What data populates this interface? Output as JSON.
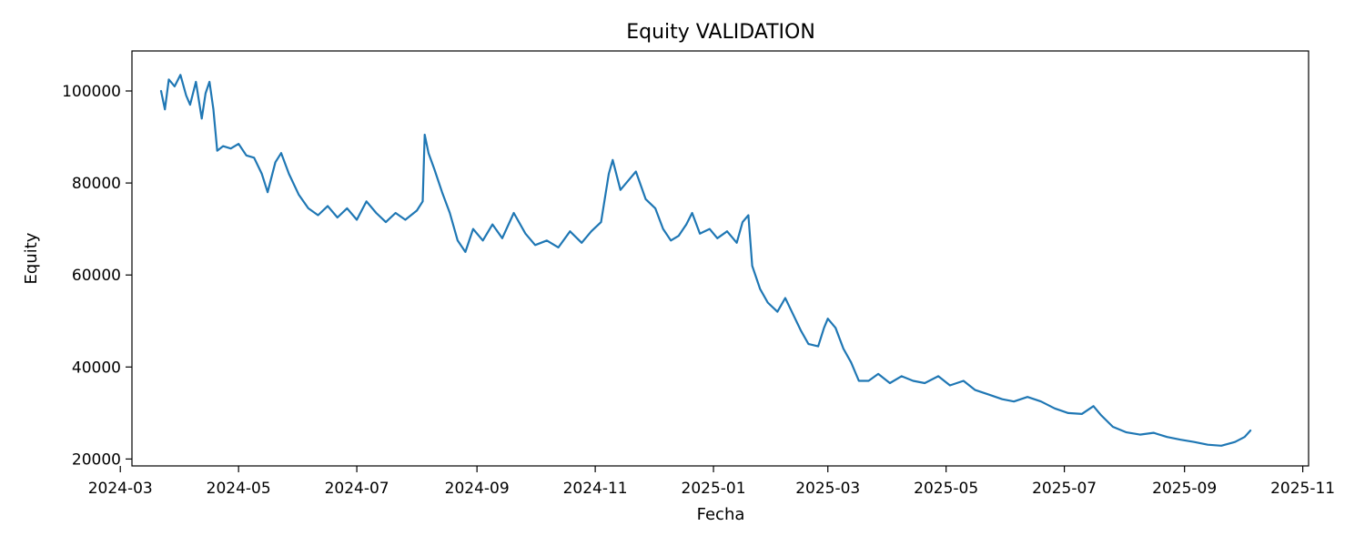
{
  "chart_data": {
    "type": "line",
    "title": "Equity VALIDATION",
    "xlabel": "Fecha",
    "ylabel": "Equity",
    "x_axis_type": "date",
    "xlim": [
      "2024-03-07",
      "2025-11-04"
    ],
    "ylim": [
      18500,
      108700
    ],
    "grid": false,
    "legend": "none",
    "x_ticks": [
      "2024-03-01",
      "2024-05-01",
      "2024-07-01",
      "2024-09-01",
      "2024-11-01",
      "2025-01-01",
      "2025-03-01",
      "2025-05-01",
      "2025-07-01",
      "2025-09-01",
      "2025-11-01"
    ],
    "x_tick_labels": [
      "2024-03",
      "2024-05",
      "2024-07",
      "2024-09",
      "2024-11",
      "2025-01",
      "2025-03",
      "2025-05",
      "2025-07",
      "2025-09",
      "2025-11"
    ],
    "y_ticks": [
      20000,
      40000,
      60000,
      80000,
      100000
    ],
    "y_tick_labels": [
      "20000",
      "40000",
      "60000",
      "80000",
      "100000"
    ],
    "series": [
      {
        "color": "#1f77b4",
        "points": [
          [
            "2024-03-22",
            100000
          ],
          [
            "2024-03-24",
            96000
          ],
          [
            "2024-03-26",
            102500
          ],
          [
            "2024-03-29",
            101000
          ],
          [
            "2024-04-01",
            103500
          ],
          [
            "2024-04-04",
            99000
          ],
          [
            "2024-04-06",
            97000
          ],
          [
            "2024-04-09",
            102000
          ],
          [
            "2024-04-12",
            94000
          ],
          [
            "2024-04-14",
            99500
          ],
          [
            "2024-04-16",
            102000
          ],
          [
            "2024-04-18",
            96000
          ],
          [
            "2024-04-20",
            87000
          ],
          [
            "2024-04-23",
            88000
          ],
          [
            "2024-04-27",
            87500
          ],
          [
            "2024-05-01",
            88500
          ],
          [
            "2024-05-05",
            86000
          ],
          [
            "2024-05-09",
            85500
          ],
          [
            "2024-05-13",
            82000
          ],
          [
            "2024-05-16",
            78000
          ],
          [
            "2024-05-20",
            84500
          ],
          [
            "2024-05-23",
            86500
          ],
          [
            "2024-05-27",
            82000
          ],
          [
            "2024-06-01",
            77500
          ],
          [
            "2024-06-06",
            74500
          ],
          [
            "2024-06-11",
            73000
          ],
          [
            "2024-06-16",
            75000
          ],
          [
            "2024-06-21",
            72500
          ],
          [
            "2024-06-26",
            74500
          ],
          [
            "2024-07-01",
            72000
          ],
          [
            "2024-07-06",
            76000
          ],
          [
            "2024-07-11",
            73500
          ],
          [
            "2024-07-16",
            71500
          ],
          [
            "2024-07-21",
            73500
          ],
          [
            "2024-07-26",
            72000
          ],
          [
            "2024-08-01",
            74000
          ],
          [
            "2024-08-04",
            76000
          ],
          [
            "2024-08-05",
            90500
          ],
          [
            "2024-08-07",
            86500
          ],
          [
            "2024-08-10",
            83000
          ],
          [
            "2024-08-14",
            78000
          ],
          [
            "2024-08-18",
            73500
          ],
          [
            "2024-08-22",
            67500
          ],
          [
            "2024-08-26",
            65000
          ],
          [
            "2024-08-30",
            70000
          ],
          [
            "2024-09-04",
            67500
          ],
          [
            "2024-09-09",
            71000
          ],
          [
            "2024-09-14",
            68000
          ],
          [
            "2024-09-20",
            73500
          ],
          [
            "2024-09-26",
            69000
          ],
          [
            "2024-10-01",
            66500
          ],
          [
            "2024-10-07",
            67500
          ],
          [
            "2024-10-13",
            66000
          ],
          [
            "2024-10-19",
            69500
          ],
          [
            "2024-10-25",
            67000
          ],
          [
            "2024-10-30",
            69500
          ],
          [
            "2024-11-04",
            71500
          ],
          [
            "2024-11-08",
            82000
          ],
          [
            "2024-11-10",
            85000
          ],
          [
            "2024-11-14",
            78500
          ],
          [
            "2024-11-18",
            80500
          ],
          [
            "2024-11-22",
            82500
          ],
          [
            "2024-11-27",
            76500
          ],
          [
            "2024-12-02",
            74500
          ],
          [
            "2024-12-06",
            70000
          ],
          [
            "2024-12-10",
            67500
          ],
          [
            "2024-12-14",
            68500
          ],
          [
            "2024-12-18",
            71000
          ],
          [
            "2024-12-21",
            73500
          ],
          [
            "2024-12-25",
            69000
          ],
          [
            "2024-12-30",
            70000
          ],
          [
            "2025-01-03",
            68000
          ],
          [
            "2025-01-08",
            69500
          ],
          [
            "2025-01-13",
            67000
          ],
          [
            "2025-01-16",
            71500
          ],
          [
            "2025-01-19",
            73000
          ],
          [
            "2025-01-21",
            62000
          ],
          [
            "2025-01-25",
            57000
          ],
          [
            "2025-01-29",
            54000
          ],
          [
            "2025-02-03",
            52000
          ],
          [
            "2025-02-07",
            55000
          ],
          [
            "2025-02-11",
            51500
          ],
          [
            "2025-02-15",
            48000
          ],
          [
            "2025-02-19",
            45000
          ],
          [
            "2025-02-24",
            44500
          ],
          [
            "2025-02-27",
            48500
          ],
          [
            "2025-03-01",
            50500
          ],
          [
            "2025-03-05",
            48500
          ],
          [
            "2025-03-09",
            44000
          ],
          [
            "2025-03-13",
            41000
          ],
          [
            "2025-03-17",
            37000
          ],
          [
            "2025-03-22",
            37000
          ],
          [
            "2025-03-27",
            38500
          ],
          [
            "2025-04-02",
            36500
          ],
          [
            "2025-04-08",
            38000
          ],
          [
            "2025-04-14",
            37000
          ],
          [
            "2025-04-20",
            36500
          ],
          [
            "2025-04-27",
            38000
          ],
          [
            "2025-05-03",
            36000
          ],
          [
            "2025-05-10",
            37000
          ],
          [
            "2025-05-16",
            35000
          ],
          [
            "2025-05-23",
            34000
          ],
          [
            "2025-05-30",
            33000
          ],
          [
            "2025-06-05",
            32500
          ],
          [
            "2025-06-12",
            33500
          ],
          [
            "2025-06-19",
            32500
          ],
          [
            "2025-06-26",
            31000
          ],
          [
            "2025-07-03",
            30000
          ],
          [
            "2025-07-10",
            29800
          ],
          [
            "2025-07-16",
            31500
          ],
          [
            "2025-07-20",
            29500
          ],
          [
            "2025-07-26",
            27000
          ],
          [
            "2025-08-02",
            25800
          ],
          [
            "2025-08-09",
            25300
          ],
          [
            "2025-08-16",
            25700
          ],
          [
            "2025-08-23",
            24800
          ],
          [
            "2025-08-30",
            24200
          ],
          [
            "2025-09-06",
            23700
          ],
          [
            "2025-09-13",
            23100
          ],
          [
            "2025-09-20",
            22900
          ],
          [
            "2025-09-27",
            23700
          ],
          [
            "2025-10-02",
            24800
          ],
          [
            "2025-10-05",
            26200
          ]
        ]
      }
    ]
  }
}
